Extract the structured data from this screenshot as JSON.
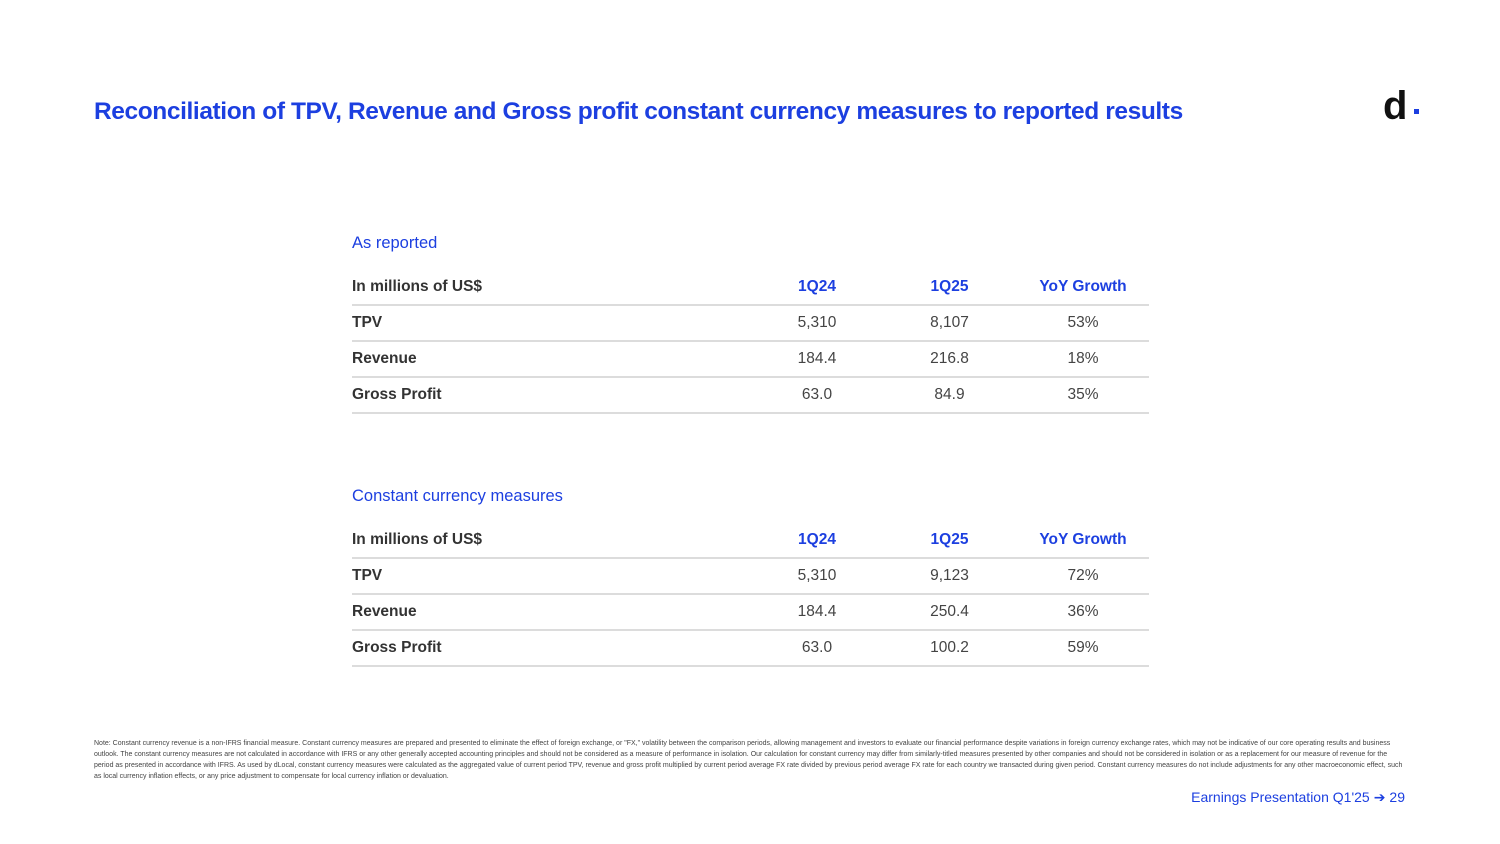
{
  "title": "Reconciliation of TPV, Revenue and Gross profit constant currency measures to reported results",
  "logo": {
    "letter": "d"
  },
  "sections": [
    {
      "heading": "As reported",
      "columns": [
        "In millions of US$",
        "1Q24",
        "1Q25",
        "YoY Growth"
      ],
      "rows": [
        {
          "label": "TPV",
          "q124": "5,310",
          "q125": "8,107",
          "yoy": "53%"
        },
        {
          "label": "Revenue",
          "q124": "184.4",
          "q125": "216.8",
          "yoy": "18%"
        },
        {
          "label": "Gross Profit",
          "q124": "63.0",
          "q125": "84.9",
          "yoy": "35%"
        }
      ]
    },
    {
      "heading": "Constant currency measures",
      "columns": [
        "In millions of US$",
        "1Q24",
        "1Q25",
        "YoY Growth"
      ],
      "rows": [
        {
          "label": "TPV",
          "q124": "5,310",
          "q125": "9,123",
          "yoy": "72%"
        },
        {
          "label": "Revenue",
          "q124": "184.4",
          "q125": "250.4",
          "yoy": "36%"
        },
        {
          "label": "Gross Profit",
          "q124": "63.0",
          "q125": "100.2",
          "yoy": "59%"
        }
      ]
    }
  ],
  "note": "Note: Constant currency revenue is a non-IFRS financial measure. Constant currency measures are prepared and presented to eliminate the effect of foreign exchange, or \"FX,\" volatility between the comparison periods, allowing management and investors to evaluate our financial performance despite variations in foreign currency exchange rates, which may not be indicative of our core operating results and business outlook. The constant currency measures are not calculated in accordance with IFRS or any other generally accepted accounting principles and should not be considered as a measure of performance in isolation. Our calculation for constant currency may differ from similarly-titled measures presented by other companies and should not be considered in isolation or as a replacement for our measure of revenue for the period as presented in accordance with IFRS. As used by dLocal, constant currency measures were calculated as the aggregated value of current period TPV, revenue and gross profit multiplied by current period average FX rate divided by previous period average FX rate for each country we transacted during given period. Constant currency measures do not include adjustments for any other macroeconomic effect, such as local currency inflation effects, or any price adjustment to compensate for local currency inflation or devaluation.",
  "footer": {
    "label": "Earnings Presentation Q1'25",
    "arrow": "➔",
    "page": "29"
  },
  "colors": {
    "accent": "#1c3fe0",
    "text": "#333333",
    "rule": "#dcdcdc"
  }
}
